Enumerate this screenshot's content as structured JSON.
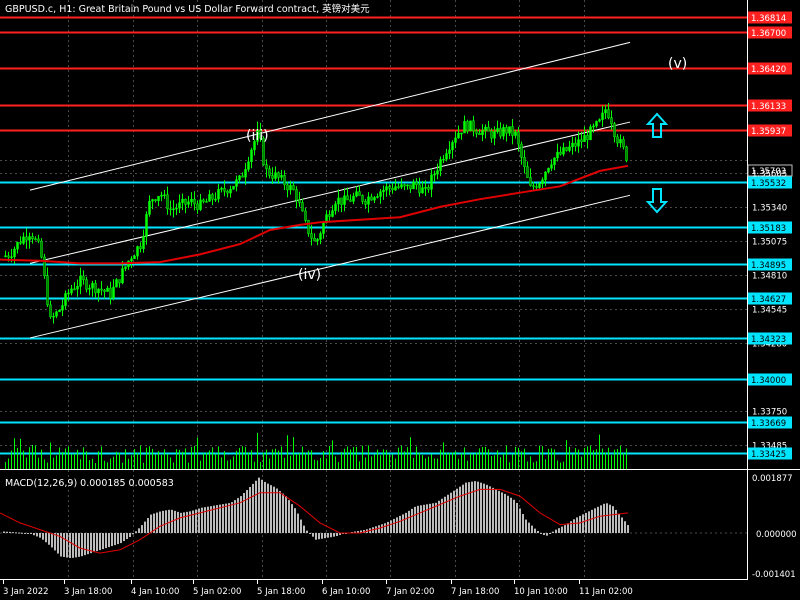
{
  "window": {
    "title": "GBPUSD.c, H1:  Great Britain Pound vs US Dollar Forward contract, 英镑对美元"
  },
  "colors": {
    "background": "#000000",
    "grid": "#4a4a4a",
    "resistance": "#ff2020",
    "support": "#00e5ff",
    "bull_candle": "#00ff00",
    "bear_candle": "#008000",
    "moving_average": "#e00000",
    "channel": "#ffffff",
    "macd_hist": "#bcbcbc",
    "macd_signal": "#e00000",
    "label_text": "#ffffff"
  },
  "price_axis": {
    "ticks": [
      "1.35703",
      "1.35605",
      "1.35340",
      "1.35075",
      "1.34810",
      "1.34545",
      "1.34280",
      "1.33750",
      "1.33485"
    ],
    "current_price": "1.35703"
  },
  "levels": [
    {
      "label": "1.36814",
      "kind": "resistance"
    },
    {
      "label": "1.36700",
      "kind": "resistance"
    },
    {
      "label": "1.36420",
      "kind": "resistance"
    },
    {
      "label": "1.36133",
      "kind": "resistance"
    },
    {
      "label": "1.35937",
      "kind": "resistance"
    },
    {
      "label": "1.35532",
      "kind": "support"
    },
    {
      "label": "1.35183",
      "kind": "support"
    },
    {
      "label": "1.34895",
      "kind": "support"
    },
    {
      "label": "1.34627",
      "kind": "support"
    },
    {
      "label": "1.34323",
      "kind": "support"
    },
    {
      "label": "1.34000",
      "kind": "support"
    },
    {
      "label": "1.33669",
      "kind": "support"
    },
    {
      "label": "1.33425",
      "kind": "support"
    }
  ],
  "wave_labels": [
    "(iii)",
    "(iv)",
    "(v)"
  ],
  "icons": {
    "up_arrow": "hollow-arrow-up-icon",
    "down_arrow": "hollow-arrow-down-icon"
  },
  "macd": {
    "title": "MACD(12,26,9) 0.000185 0.000583",
    "ticks": [
      "0.001877",
      "0.000000",
      "-0.001401"
    ]
  },
  "time_axis": {
    "labels": [
      "3 Jan 2022",
      "3 Jan 18:00",
      "4 Jan 10:00",
      "5 Jan 02:00",
      "5 Jan 18:00",
      "6 Jan 10:00",
      "7 Jan 02:00",
      "7 Jan 18:00",
      "10 Jan 10:00",
      "11 Jan 02:00"
    ]
  },
  "chart_data": {
    "type": "candlestick",
    "price_range": [
      1.333,
      1.3695
    ],
    "overlays": [
      "moving average",
      "price channel"
    ],
    "close_path": [
      [
        0,
        1.3494
      ],
      [
        10,
        1.3498
      ],
      [
        20,
        1.3508
      ],
      [
        30,
        1.3515
      ],
      [
        40,
        1.35
      ],
      [
        50,
        1.3445
      ],
      [
        60,
        1.3455
      ],
      [
        70,
        1.347
      ],
      [
        80,
        1.3476
      ],
      [
        90,
        1.3473
      ],
      [
        100,
        1.347
      ],
      [
        110,
        1.3466
      ],
      [
        120,
        1.348
      ],
      [
        130,
        1.3495
      ],
      [
        140,
        1.3505
      ],
      [
        150,
        1.354
      ],
      [
        160,
        1.3545
      ],
      [
        170,
        1.3532
      ],
      [
        180,
        1.3535
      ],
      [
        190,
        1.3538
      ],
      [
        200,
        1.3535
      ],
      [
        210,
        1.354
      ],
      [
        220,
        1.3545
      ],
      [
        230,
        1.355
      ],
      [
        240,
        1.3555
      ],
      [
        250,
        1.3578
      ],
      [
        258,
        1.3592
      ],
      [
        265,
        1.3562
      ],
      [
        275,
        1.3558
      ],
      [
        285,
        1.3552
      ],
      [
        295,
        1.3545
      ],
      [
        305,
        1.352
      ],
      [
        315,
        1.3505
      ],
      [
        325,
        1.3525
      ],
      [
        335,
        1.354
      ],
      [
        345,
        1.3538
      ],
      [
        355,
        1.3542
      ],
      [
        365,
        1.354
      ],
      [
        375,
        1.3545
      ],
      [
        385,
        1.3548
      ],
      [
        395,
        1.355
      ],
      [
        405,
        1.3548
      ],
      [
        415,
        1.3552
      ],
      [
        425,
        1.3545
      ],
      [
        435,
        1.3562
      ],
      [
        445,
        1.3578
      ],
      [
        455,
        1.359
      ],
      [
        465,
        1.3598
      ],
      [
        475,
        1.3595
      ],
      [
        485,
        1.3592
      ],
      [
        495,
        1.359
      ],
      [
        505,
        1.3594
      ],
      [
        515,
        1.359
      ],
      [
        525,
        1.356
      ],
      [
        530,
        1.3548
      ],
      [
        540,
        1.3555
      ],
      [
        550,
        1.357
      ],
      [
        560,
        1.3575
      ],
      [
        570,
        1.358
      ],
      [
        580,
        1.3585
      ],
      [
        590,
        1.3592
      ],
      [
        600,
        1.36
      ],
      [
        605,
        1.361
      ],
      [
        610,
        1.3605
      ],
      [
        615,
        1.359
      ],
      [
        622,
        1.358
      ],
      [
        628,
        1.357
      ]
    ],
    "moving_average_path": [
      [
        0,
        1.3493
      ],
      [
        40,
        1.3492
      ],
      [
        80,
        1.349
      ],
      [
        120,
        1.349
      ],
      [
        160,
        1.3491
      ],
      [
        200,
        1.3497
      ],
      [
        240,
        1.3505
      ],
      [
        270,
        1.3516
      ],
      [
        300,
        1.352
      ],
      [
        320,
        1.3522
      ],
      [
        360,
        1.3524
      ],
      [
        400,
        1.3526
      ],
      [
        440,
        1.3534
      ],
      [
        480,
        1.354
      ],
      [
        520,
        1.3545
      ],
      [
        560,
        1.355
      ],
      [
        600,
        1.3562
      ],
      [
        628,
        1.3566
      ]
    ],
    "channel": {
      "upper": [
        [
          30,
          1.3547
        ],
        [
          630,
          1.3662
        ]
      ],
      "middle": [
        [
          30,
          1.349
        ],
        [
          630,
          1.36
        ]
      ],
      "lower": [
        [
          30,
          1.3432
        ],
        [
          630,
          1.3543
        ]
      ]
    },
    "macd_hist_path": [
      [
        0,
        5e-05
      ],
      [
        10,
        3e-05
      ],
      [
        20,
        1e-05
      ],
      [
        30,
        -3e-05
      ],
      [
        40,
        -0.00015
      ],
      [
        50,
        -0.0004
      ],
      [
        60,
        -0.0007
      ],
      [
        70,
        -0.00075
      ],
      [
        80,
        -0.0007
      ],
      [
        90,
        -0.0006
      ],
      [
        100,
        -0.0005
      ],
      [
        110,
        -0.0004
      ],
      [
        120,
        -0.0003
      ],
      [
        130,
        -0.0001
      ],
      [
        140,
        0.0002
      ],
      [
        150,
        0.00055
      ],
      [
        160,
        0.00065
      ],
      [
        170,
        0.0007
      ],
      [
        180,
        0.0006
      ],
      [
        190,
        0.00065
      ],
      [
        200,
        0.00075
      ],
      [
        210,
        0.0008
      ],
      [
        220,
        0.00085
      ],
      [
        230,
        0.0009
      ],
      [
        240,
        0.0011
      ],
      [
        250,
        0.0014
      ],
      [
        258,
        0.00165
      ],
      [
        265,
        0.0015
      ],
      [
        275,
        0.00135
      ],
      [
        285,
        0.0011
      ],
      [
        295,
        0.0007
      ],
      [
        305,
        0.0001
      ],
      [
        315,
        -0.0002
      ],
      [
        325,
        -0.00015
      ],
      [
        335,
        -0.0001
      ],
      [
        345,
        0.0
      ],
      [
        355,
        5e-05
      ],
      [
        365,
        0.0001
      ],
      [
        375,
        0.0002
      ],
      [
        385,
        0.0003
      ],
      [
        395,
        0.00045
      ],
      [
        405,
        0.0006
      ],
      [
        415,
        0.0008
      ],
      [
        425,
        0.00085
      ],
      [
        435,
        0.0009
      ],
      [
        445,
        0.0011
      ],
      [
        455,
        0.0013
      ],
      [
        465,
        0.0015
      ],
      [
        475,
        0.00155
      ],
      [
        485,
        0.00145
      ],
      [
        495,
        0.0013
      ],
      [
        505,
        0.00115
      ],
      [
        515,
        0.00095
      ],
      [
        525,
        0.0004
      ],
      [
        535,
        0.0001
      ],
      [
        545,
        -0.0001
      ],
      [
        555,
        0.0001
      ],
      [
        565,
        0.00025
      ],
      [
        575,
        0.00045
      ],
      [
        585,
        0.0006
      ],
      [
        595,
        0.00075
      ],
      [
        605,
        0.0009
      ],
      [
        612,
        0.0008
      ],
      [
        620,
        0.0005
      ],
      [
        628,
        0.0002
      ]
    ],
    "macd_signal_path": [
      [
        0,
        0.0006
      ],
      [
        20,
        0.0003
      ],
      [
        40,
        0.0001
      ],
      [
        60,
        -0.0001
      ],
      [
        80,
        -0.00045
      ],
      [
        100,
        -0.0006
      ],
      [
        120,
        -0.0005
      ],
      [
        140,
        -0.0002
      ],
      [
        160,
        0.0002
      ],
      [
        180,
        0.00045
      ],
      [
        200,
        0.0006
      ],
      [
        220,
        0.00075
      ],
      [
        240,
        0.0009
      ],
      [
        260,
        0.0012
      ],
      [
        280,
        0.0012
      ],
      [
        300,
        0.0008
      ],
      [
        320,
        0.0003
      ],
      [
        340,
        0.0
      ],
      [
        360,
        0.0
      ],
      [
        380,
        0.00015
      ],
      [
        400,
        0.00035
      ],
      [
        420,
        0.0006
      ],
      [
        440,
        0.00085
      ],
      [
        460,
        0.0011
      ],
      [
        480,
        0.0013
      ],
      [
        500,
        0.0013
      ],
      [
        520,
        0.0011
      ],
      [
        540,
        0.0006
      ],
      [
        560,
        0.00025
      ],
      [
        580,
        0.0003
      ],
      [
        600,
        0.0005
      ],
      [
        628,
        0.0006
      ]
    ],
    "macd_range": [
      -0.0014,
      0.001877
    ]
  }
}
